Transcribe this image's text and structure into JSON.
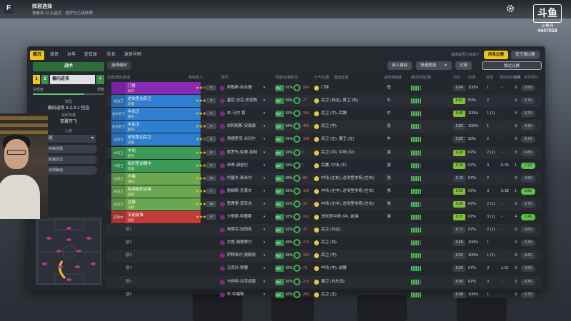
{
  "topbar": {
    "title": "阵容选择",
    "subtitle": "看看谁 对 水晶宫 · 德罗巴乙级联赛"
  },
  "watermark": {
    "logo": "斗鱼",
    "name": "斗鱼号",
    "id": "4447018"
  },
  "tabs": [
    {
      "label": "概况",
      "active": true
    },
    {
      "label": "球员",
      "active": false
    },
    {
      "label": "对手",
      "active": false
    },
    {
      "label": "定位球",
      "active": false
    },
    {
      "label": "队长",
      "active": false
    },
    {
      "label": "球员号码",
      "active": false
    }
  ],
  "toolbar": {
    "right_hint": "首发是否已完成了",
    "all_matches": "所有比赛",
    "this_match": "仅下场比赛",
    "select_tactic": "选择组织",
    "use_advice": "用人建议",
    "quick_pick": "快速挑选",
    "filter": "过滤",
    "skip": "跳过比赛"
  },
  "tactics": {
    "header": "战术",
    "slot_numbers": [
      "1",
      "2"
    ],
    "tactic_name": "偏向进攻",
    "familiarity_label": "熟悉度",
    "aggression_label": "侵略",
    "formation_label": "阵型",
    "formation": "偏向进攻 4-2-3-1 控边",
    "mentality_label": "战术风格",
    "mentality": "双翼齐飞",
    "style_label": "心态",
    "style_value": "进攻",
    "option_buttons": [
      "持续控球",
      "快速反击",
      "无球跑动"
    ]
  },
  "list_headers": [
    "位置/角色/职责",
    "角色能力",
    "球员",
    "体能/比赛状态",
    "士气/位置",
    "首选位置",
    "战术熟练度",
    "最近5场比赛",
    "均分",
    "出场",
    "进球",
    "场均SR/出场",
    "助攻",
    "平均评分"
  ],
  "players": [
    {
      "pos": "",
      "role": "门将",
      "duty": "防守",
      "color": "#8a2bb5",
      "stars": "★★½",
      "badge": "0",
      "name": "阿勒斯·伯本德",
      "cond": "良好",
      "pct": "91%",
      "sc": "-394",
      "neg": true,
      "prefer": "门将",
      "fam": "低",
      "rating": "6.64",
      "form": "100%",
      "apps": "1",
      "goals": "-",
      "xg": "0",
      "avg": "6.50",
      "avg_hi": false,
      "rate_hi": false
    },
    {
      "pos": "右边卫",
      "role": "进攻型边后卫",
      "duty": "支援",
      "color": "#2f7fd1",
      "stars": "★★★",
      "badge": "3",
      "name": "塞尼·沃克·史密斯",
      "cond": "良好",
      "pct": "89%",
      "sc": "-77",
      "neg": true,
      "prefer": "后卫 (右边), 翼卫 (右)",
      "fam": "中",
      "rating": "6.82",
      "form": "50%",
      "apps": "2",
      "goals": "-",
      "xg": "0",
      "avg": "6.75",
      "avg_hi": false,
      "rate_hi": true
    },
    {
      "pos": "右中后卫",
      "role": "中后卫",
      "duty": "防守",
      "color": "#2f7fd1",
      "stars": "★★★",
      "badge": "5",
      "name": "本·马尔·黄",
      "cond": "良好",
      "pct": "92%",
      "sc": "-195",
      "neg": true,
      "prefer": "后卫 (中), 后腰",
      "fam": "中",
      "rating": "6.85",
      "form": "100%",
      "apps": "1 (1)",
      "goals": "-",
      "xg": "0",
      "avg": "6.70",
      "avg_hi": false,
      "rate_hi": true
    },
    {
      "pos": "左中后卫",
      "role": "中后卫",
      "duty": "防守",
      "color": "#2f7fd1",
      "stars": "★★★",
      "badge": "6",
      "name": "伯阿姆斯·安德森",
      "cond": "良好",
      "pct": "94%",
      "sc": "-406",
      "neg": true,
      "prefer": "后卫 (中)",
      "fam": "低",
      "rating": "6.80",
      "form": "100%",
      "apps": "1",
      "goals": "-",
      "xg": "0",
      "avg": "6.20",
      "avg_hi": false,
      "rate_hi": false
    },
    {
      "pos": "左边卫",
      "role": "进攻型边后卫",
      "duty": "支援",
      "color": "#2f7fd1",
      "stars": "★★½",
      "badge": "3",
      "name": "费德里克·米切尔",
      "cond": "良好",
      "pct": "91%",
      "sc": "-138",
      "neg": true,
      "prefer": "后卫 (左), 翼卫 (左)",
      "fam": "中",
      "rating": "6.80",
      "form": "50%",
      "apps": "2",
      "goals": "-",
      "xg": "0",
      "avg": "6.70",
      "avg_hi": false,
      "rate_hi": false
    },
    {
      "pos": "中前卫",
      "role": "中场",
      "duty": "防守",
      "color": "#3c9a58",
      "stars": "★★★",
      "badge": "8",
      "name": "默罗先·伯顿·加利",
      "cond": "良好",
      "pct": "93%",
      "sc": "!",
      "neg": false,
      "prefer": "后卫 (中), 中场 (中)",
      "fam": "强",
      "rating": "6.68",
      "form": "67%",
      "apps": "2 (1)",
      "goals": "-",
      "xg": "0",
      "avg": "6.65",
      "avg_hi": false,
      "rate_hi": true
    },
    {
      "pos": "中前卫",
      "role": "组织型前腰中",
      "duty": "支援",
      "color": "#3c9a58",
      "stars": "★★★",
      "badge": "4",
      "name": "伊蒂·康普巴",
      "cond": "良好",
      "pct": "93%",
      "sc": "!",
      "neg": false,
      "prefer": "后腰, 中场 (中)",
      "fam": "强",
      "rating": "6.79",
      "form": "67%",
      "apps": "3",
      "goals": "0.35",
      "xg": "1",
      "avg": "7.20",
      "avg_hi": true,
      "rate_hi": true
    },
    {
      "pos": "左前卫",
      "role": "内锋",
      "duty": "进攻",
      "color": "#6aa84f",
      "stars": "★★★",
      "badge": "11",
      "name": "约瑟夫·奥米尔",
      "cond": "良好",
      "pct": "89%",
      "sc": "-88",
      "neg": true,
      "prefer": "中场 (左右), 进攻型中场 (左右)",
      "fam": "强",
      "rating": "6.70",
      "form": "67%",
      "apps": "2",
      "goals": "-",
      "xg": "0",
      "avg": "6.50",
      "avg_hi": false,
      "rate_hi": false
    },
    {
      "pos": "右前卫",
      "role": "标准组织边锋",
      "duty": "支援",
      "color": "#6aa84f",
      "stars": "★★★",
      "badge": "7",
      "name": "詹姆斯·克莱文",
      "cond": "良好",
      "pct": "93%",
      "sc": "-108",
      "neg": true,
      "prefer": "中场 (左中), 进攻型中场 (左右)",
      "fam": "强",
      "rating": "6.93",
      "form": "67%",
      "apps": "3",
      "goals": "0.38",
      "xg": "1",
      "avg": "6.95",
      "avg_hi": true,
      "rate_hi": true
    },
    {
      "pos": "左前卫",
      "role": "边锋",
      "duty": "支援",
      "color": "#6aa84f",
      "stars": "★★★",
      "badge": "10",
      "name": "思蒂里·道安杰",
      "cond": "良好",
      "pct": "91%",
      "sc": "-15",
      "neg": true,
      "prefer": "中场 (左中), 进攻型中场 (左右)",
      "fam": "强",
      "rating": "6.92",
      "form": "67%",
      "apps": "2 (1)",
      "goals": "-",
      "xg": "0",
      "avg": "6.70",
      "avg_hi": false,
      "rate_hi": true
    },
    {
      "pos": "前锋中",
      "role": "突前前锋",
      "duty": "进攻",
      "color": "#c43b3b",
      "stars": "★★★★",
      "badge": "9",
      "name": "卡里斯·阿隆斯",
      "cond": "良好",
      "pct": "92%",
      "sc": "-163",
      "neg": true,
      "prefer": "进攻型中场 (中), 前锋",
      "fam": "强",
      "rating": "6.77",
      "form": "67%",
      "apps": "3 (1)",
      "goals": "-",
      "xg": "4",
      "avg": "7.40",
      "avg_hi": true,
      "rate_hi": true
    },
    {
      "pos": "替1",
      "role": "",
      "duty": "",
      "color": "",
      "stars": "",
      "badge": "",
      "name": "埃里克·加西亚",
      "cond": "良好",
      "pct": "91%",
      "sc": "-37",
      "neg": true,
      "prefer": "后卫 (右边)",
      "fam": "",
      "rating": "6.71",
      "form": "67%",
      "apps": "2 (1)",
      "goals": "-",
      "xg": "0",
      "avg": "6.63",
      "avg_hi": false,
      "rate_hi": false
    },
    {
      "pos": "替2",
      "role": "",
      "duty": "",
      "color": "",
      "stars": "",
      "badge": "",
      "name": "杰里·奥摩摩尔",
      "cond": "良好",
      "pct": "89%",
      "sc": "-176",
      "neg": true,
      "prefer": "后卫 (右)",
      "fam": "",
      "rating": "6.65",
      "form": "100%",
      "apps": "1",
      "goals": "-",
      "xg": "0",
      "avg": "6.30",
      "avg_hi": false,
      "rate_hi": false
    },
    {
      "pos": "替3",
      "role": "",
      "duty": "",
      "color": "",
      "stars": "",
      "badge": "",
      "name": "萨穆埃尔·奥赖恩",
      "cond": "良好",
      "pct": "93%",
      "sc": "-182",
      "neg": true,
      "prefer": "后卫 (中)",
      "fam": "",
      "rating": "6.63",
      "form": "100%",
      "apps": "1 (1)",
      "goals": "-",
      "xg": "0",
      "avg": "6.62",
      "avg_hi": false,
      "rate_hi": false
    },
    {
      "pos": "替4",
      "role": "",
      "duty": "",
      "color": "",
      "stars": "",
      "badge": "",
      "name": "马克特·穆雷",
      "cond": "良好",
      "pct": "92%",
      "sc": "-70",
      "neg": true,
      "prefer": "中场 (中), 前腰",
      "fam": "",
      "rating": "6.60",
      "form": "67%",
      "apps": "3",
      "goals": "1.01",
      "xg": "0",
      "avg": "6.60",
      "avg_hi": false,
      "rate_hi": false
    },
    {
      "pos": "替5",
      "role": "",
      "duty": "",
      "color": "",
      "stars": "",
      "badge": "",
      "name": "卡伊特·拉芬诺雷",
      "cond": "良好",
      "pct": "91%",
      "sc": "-216",
      "neg": true,
      "prefer": "翼卫 (右左边)",
      "fam": "",
      "rating": "6.60",
      "form": "67%",
      "apps": "3",
      "goals": "-",
      "xg": "0",
      "avg": "6.45",
      "avg_hi": false,
      "rate_hi": false
    },
    {
      "pos": "替6",
      "role": "",
      "duty": "",
      "color": "",
      "stars": "",
      "badge": "",
      "name": "本·伯格斯",
      "cond": "良好",
      "pct": "92%",
      "sc": "-282",
      "neg": true,
      "prefer": "后卫 (左)",
      "fam": "",
      "rating": "6.68",
      "form": "100%",
      "apps": "1",
      "goals": "-",
      "xg": "0",
      "avg": "6.70",
      "avg_hi": false,
      "rate_hi": false
    }
  ],
  "colors": {
    "accent": "#f0c419",
    "panel": "#22252b",
    "green": "#3b8f4b"
  }
}
